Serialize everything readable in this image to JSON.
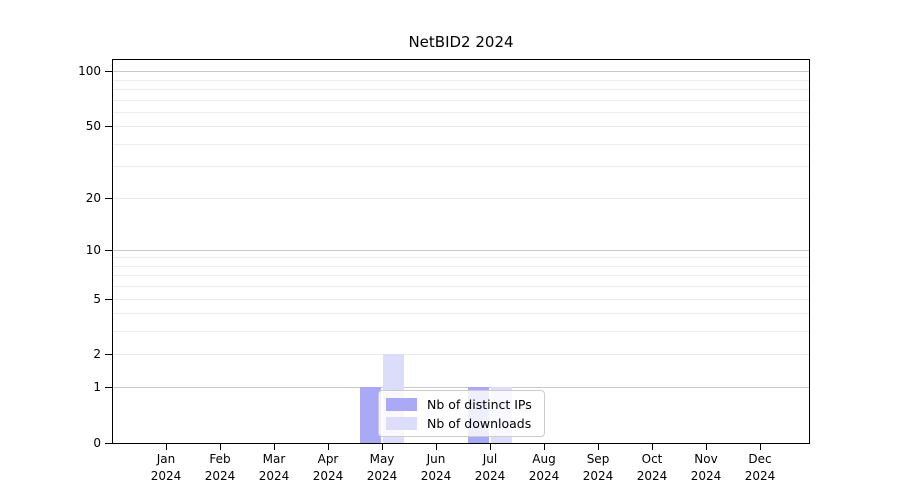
{
  "title": "NetBID2 2024",
  "chart_data": {
    "type": "bar",
    "title": "NetBID2 2024",
    "x_categories": [
      "Jan",
      "Feb",
      "Mar",
      "Apr",
      "May",
      "Jun",
      "Jul",
      "Aug",
      "Sep",
      "Oct",
      "Nov",
      "Dec"
    ],
    "x_year": "2024",
    "series": [
      {
        "name": "Nb of distinct IPs",
        "color": "#a9a9f6",
        "values": [
          0,
          0,
          0,
          0,
          1,
          0,
          1,
          0,
          0,
          0,
          0,
          0
        ]
      },
      {
        "name": "Nb of downloads",
        "color": "#dcdcfb",
        "values": [
          0,
          0,
          0,
          0,
          2,
          0,
          1,
          0,
          0,
          0,
          0,
          0
        ]
      }
    ],
    "y_scale": "log1p",
    "y_major_ticks": [
      0,
      1,
      2,
      5,
      10,
      20,
      50,
      100
    ],
    "y_decade_gridlines": [
      1,
      10,
      100
    ],
    "y_minor_gridlines": [
      3,
      4,
      6,
      7,
      8,
      9,
      30,
      40,
      60,
      70,
      80,
      90
    ],
    "ylim": [
      0,
      115
    ],
    "grid": "horizontal",
    "legend_position": "lower-center",
    "colors": {
      "grid_decade": "#c9c9c9",
      "grid_minor": "#ececec",
      "axis": "#000000",
      "legend_border": "#cccccc"
    }
  }
}
